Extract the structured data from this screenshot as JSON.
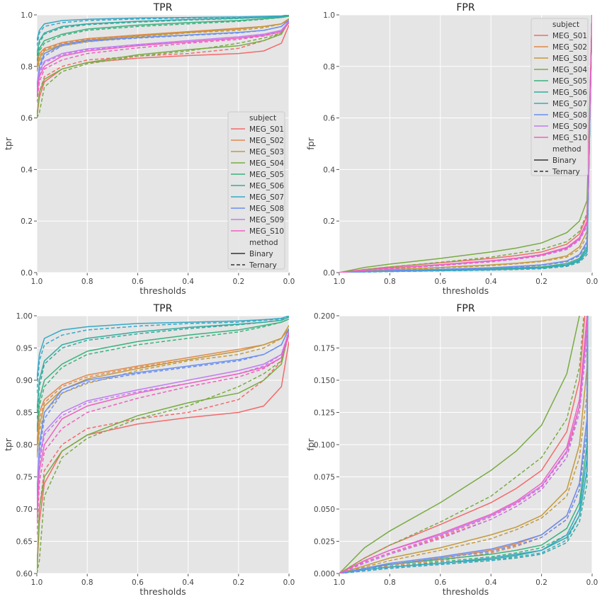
{
  "figure": {
    "background": "#ffffff",
    "panel_background": "#e5e5e5",
    "grid_color": "#ffffff"
  },
  "legend_items": {
    "subject_title": "subject",
    "method_title": "method",
    "subjects": [
      "MEG_S01",
      "MEG_S02",
      "MEG_S03",
      "MEG_S04",
      "MEG_S05",
      "MEG_S06",
      "MEG_S07",
      "MEG_S08",
      "MEG_S09",
      "MEG_S10"
    ],
    "colors": [
      "#f46a6c",
      "#e0884a",
      "#c39a3f",
      "#79ab43",
      "#3ab27f",
      "#33ab9f",
      "#36a8c6",
      "#6b8ff0",
      "#c07cf2",
      "#f060c0"
    ],
    "methods": [
      "Binary",
      "Ternary"
    ]
  },
  "chart_data": [
    {
      "type": "line",
      "title": "TPR",
      "xlabel": "thresholds",
      "ylabel": "tpr",
      "xlim": [
        1.0,
        0.0
      ],
      "ylim": [
        0.0,
        1.0
      ],
      "xticks": [
        "1.0",
        "0.8",
        "0.6",
        "0.4",
        "0.2",
        "0.0"
      ],
      "yticks": [
        "0.0",
        "0.2",
        "0.4",
        "0.6",
        "0.8",
        "1.0"
      ],
      "grid": true,
      "legend": "lower-right",
      "x": [
        1.0,
        0.99,
        0.97,
        0.9,
        0.8,
        0.6,
        0.4,
        0.2,
        0.1,
        0.03,
        0.0
      ],
      "series": [
        {
          "name": "MEG_S01",
          "method": "Binary",
          "values": [
            0.6,
            0.68,
            0.74,
            0.79,
            0.815,
            0.832,
            0.842,
            0.85,
            0.86,
            0.89,
            0.96
          ]
        },
        {
          "name": "MEG_S01",
          "method": "Ternary",
          "values": [
            0.6,
            0.7,
            0.76,
            0.8,
            0.825,
            0.84,
            0.85,
            0.87,
            0.9,
            0.93,
            0.97
          ]
        },
        {
          "name": "MEG_S02",
          "method": "Binary",
          "values": [
            0.8,
            0.85,
            0.87,
            0.893,
            0.908,
            0.922,
            0.935,
            0.948,
            0.955,
            0.965,
            0.98
          ]
        },
        {
          "name": "MEG_S02",
          "method": "Ternary",
          "values": [
            0.8,
            0.84,
            0.865,
            0.89,
            0.905,
            0.92,
            0.932,
            0.945,
            0.955,
            0.965,
            0.985
          ]
        },
        {
          "name": "MEG_S03",
          "method": "Binary",
          "values": [
            0.78,
            0.83,
            0.86,
            0.885,
            0.902,
            0.918,
            0.932,
            0.945,
            0.955,
            0.965,
            0.985
          ]
        },
        {
          "name": "MEG_S03",
          "method": "Ternary",
          "values": [
            0.78,
            0.82,
            0.85,
            0.88,
            0.895,
            0.915,
            0.93,
            0.94,
            0.95,
            0.965,
            0.985
          ]
        },
        {
          "name": "MEG_S04",
          "method": "Binary",
          "values": [
            0.6,
            0.7,
            0.75,
            0.79,
            0.815,
            0.845,
            0.865,
            0.88,
            0.9,
            0.925,
            0.975
          ]
        },
        {
          "name": "MEG_S04",
          "method": "Ternary",
          "values": [
            0.6,
            0.62,
            0.72,
            0.78,
            0.81,
            0.84,
            0.86,
            0.89,
            0.91,
            0.93,
            0.98
          ]
        },
        {
          "name": "MEG_S05",
          "method": "Binary",
          "values": [
            0.82,
            0.87,
            0.9,
            0.925,
            0.945,
            0.96,
            0.97,
            0.978,
            0.985,
            0.99,
            0.995
          ]
        },
        {
          "name": "MEG_S05",
          "method": "Ternary",
          "values": [
            0.82,
            0.86,
            0.89,
            0.92,
            0.94,
            0.955,
            0.965,
            0.975,
            0.983,
            0.99,
            0.995
          ]
        },
        {
          "name": "MEG_S06",
          "method": "Binary",
          "values": [
            0.85,
            0.9,
            0.93,
            0.955,
            0.965,
            0.975,
            0.982,
            0.987,
            0.99,
            0.993,
            0.998
          ]
        },
        {
          "name": "MEG_S06",
          "method": "Ternary",
          "values": [
            0.84,
            0.89,
            0.925,
            0.95,
            0.962,
            0.972,
            0.98,
            0.986,
            0.99,
            0.993,
            0.998
          ]
        },
        {
          "name": "MEG_S07",
          "method": "Binary",
          "values": [
            0.9,
            0.94,
            0.965,
            0.978,
            0.983,
            0.988,
            0.99,
            0.992,
            0.994,
            0.996,
            1.0
          ]
        },
        {
          "name": "MEG_S07",
          "method": "Ternary",
          "values": [
            0.88,
            0.93,
            0.955,
            0.97,
            0.978,
            0.984,
            0.988,
            0.99,
            0.993,
            0.995,
            1.0
          ]
        },
        {
          "name": "MEG_S08",
          "method": "Binary",
          "values": [
            0.72,
            0.8,
            0.85,
            0.885,
            0.9,
            0.912,
            0.922,
            0.932,
            0.94,
            0.955,
            0.98
          ]
        },
        {
          "name": "MEG_S08",
          "method": "Ternary",
          "values": [
            0.72,
            0.79,
            0.84,
            0.88,
            0.897,
            0.91,
            0.92,
            0.93,
            0.94,
            0.955,
            0.98
          ]
        },
        {
          "name": "MEG_S09",
          "method": "Binary",
          "values": [
            0.7,
            0.78,
            0.82,
            0.85,
            0.868,
            0.885,
            0.9,
            0.915,
            0.925,
            0.94,
            0.975
          ]
        },
        {
          "name": "MEG_S09",
          "method": "Ternary",
          "values": [
            0.7,
            0.77,
            0.815,
            0.845,
            0.865,
            0.882,
            0.895,
            0.91,
            0.922,
            0.94,
            0.975
          ]
        },
        {
          "name": "MEG_S10",
          "method": "Binary",
          "values": [
            0.68,
            0.76,
            0.8,
            0.84,
            0.86,
            0.88,
            0.895,
            0.91,
            0.92,
            0.935,
            0.97
          ]
        },
        {
          "name": "MEG_S10",
          "method": "Ternary",
          "values": [
            0.66,
            0.74,
            0.79,
            0.825,
            0.85,
            0.872,
            0.89,
            0.905,
            0.918,
            0.935,
            0.975
          ]
        }
      ]
    },
    {
      "type": "line",
      "title": "FPR",
      "xlabel": "thresholds",
      "ylabel": "fpr",
      "xlim": [
        1.0,
        0.0
      ],
      "ylim": [
        0.0,
        1.0
      ],
      "xticks": [
        "1.0",
        "0.8",
        "0.6",
        "0.4",
        "0.2",
        "0.0"
      ],
      "yticks": [
        "0.0",
        "0.2",
        "0.4",
        "0.6",
        "0.8",
        "1.0"
      ],
      "grid": true,
      "legend": "upper-right",
      "x": [
        1.0,
        0.9,
        0.8,
        0.6,
        0.4,
        0.3,
        0.2,
        0.1,
        0.05,
        0.02,
        0.0
      ],
      "series": [
        {
          "name": "MEG_S01",
          "method": "Binary",
          "values": [
            0.0,
            0.012,
            0.022,
            0.038,
            0.055,
            0.066,
            0.08,
            0.11,
            0.15,
            0.22,
            1.0
          ]
        },
        {
          "name": "MEG_S01",
          "method": "Ternary",
          "values": [
            0.0,
            0.008,
            0.015,
            0.028,
            0.042,
            0.052,
            0.065,
            0.09,
            0.13,
            0.2,
            1.0
          ]
        },
        {
          "name": "MEG_S02",
          "method": "Binary",
          "values": [
            0.0,
            0.004,
            0.007,
            0.012,
            0.018,
            0.023,
            0.03,
            0.045,
            0.07,
            0.12,
            1.0
          ]
        },
        {
          "name": "MEG_S02",
          "method": "Ternary",
          "values": [
            0.0,
            0.003,
            0.006,
            0.01,
            0.016,
            0.021,
            0.028,
            0.042,
            0.065,
            0.11,
            1.0
          ]
        },
        {
          "name": "MEG_S03",
          "method": "Binary",
          "values": [
            0.0,
            0.006,
            0.012,
            0.02,
            0.03,
            0.036,
            0.045,
            0.065,
            0.1,
            0.16,
            1.0
          ]
        },
        {
          "name": "MEG_S03",
          "method": "Ternary",
          "values": [
            0.0,
            0.005,
            0.01,
            0.018,
            0.027,
            0.034,
            0.043,
            0.06,
            0.09,
            0.14,
            1.0
          ]
        },
        {
          "name": "MEG_S04",
          "method": "Binary",
          "values": [
            0.0,
            0.02,
            0.033,
            0.055,
            0.08,
            0.095,
            0.115,
            0.155,
            0.2,
            0.28,
            1.0
          ]
        },
        {
          "name": "MEG_S04",
          "method": "Ternary",
          "values": [
            0.0,
            0.012,
            0.022,
            0.04,
            0.06,
            0.075,
            0.09,
            0.12,
            0.16,
            0.23,
            1.0
          ]
        },
        {
          "name": "MEG_S05",
          "method": "Binary",
          "values": [
            0.0,
            0.004,
            0.007,
            0.011,
            0.015,
            0.018,
            0.022,
            0.035,
            0.055,
            0.1,
            1.0
          ]
        },
        {
          "name": "MEG_S05",
          "method": "Ternary",
          "values": [
            0.0,
            0.003,
            0.005,
            0.009,
            0.013,
            0.016,
            0.02,
            0.03,
            0.05,
            0.09,
            1.0
          ]
        },
        {
          "name": "MEG_S06",
          "method": "Binary",
          "values": [
            0.0,
            0.003,
            0.005,
            0.008,
            0.011,
            0.014,
            0.018,
            0.028,
            0.045,
            0.08,
            1.0
          ]
        },
        {
          "name": "MEG_S06",
          "method": "Ternary",
          "values": [
            0.0,
            0.002,
            0.004,
            0.007,
            0.01,
            0.012,
            0.015,
            0.024,
            0.04,
            0.07,
            1.0
          ]
        },
        {
          "name": "MEG_S07",
          "method": "Binary",
          "values": [
            0.0,
            0.003,
            0.005,
            0.008,
            0.012,
            0.015,
            0.018,
            0.03,
            0.05,
            0.09,
            1.0
          ]
        },
        {
          "name": "MEG_S07",
          "method": "Ternary",
          "values": [
            0.0,
            0.002,
            0.004,
            0.007,
            0.01,
            0.013,
            0.016,
            0.026,
            0.045,
            0.08,
            1.0
          ]
        },
        {
          "name": "MEG_S08",
          "method": "Binary",
          "values": [
            0.0,
            0.004,
            0.008,
            0.013,
            0.019,
            0.024,
            0.03,
            0.045,
            0.07,
            0.12,
            1.0
          ]
        },
        {
          "name": "MEG_S08",
          "method": "Ternary",
          "values": [
            0.0,
            0.003,
            0.007,
            0.012,
            0.017,
            0.022,
            0.028,
            0.042,
            0.065,
            0.11,
            1.0
          ]
        },
        {
          "name": "MEG_S09",
          "method": "Binary",
          "values": [
            0.0,
            0.01,
            0.018,
            0.03,
            0.045,
            0.055,
            0.068,
            0.095,
            0.13,
            0.19,
            1.0
          ]
        },
        {
          "name": "MEG_S09",
          "method": "Ternary",
          "values": [
            0.0,
            0.008,
            0.015,
            0.027,
            0.042,
            0.052,
            0.065,
            0.09,
            0.125,
            0.18,
            1.0
          ]
        },
        {
          "name": "MEG_S10",
          "method": "Binary",
          "values": [
            0.0,
            0.01,
            0.018,
            0.031,
            0.046,
            0.056,
            0.07,
            0.098,
            0.135,
            0.2,
            1.0
          ]
        },
        {
          "name": "MEG_S10",
          "method": "Ternary",
          "values": [
            0.0,
            0.009,
            0.016,
            0.029,
            0.044,
            0.054,
            0.067,
            0.094,
            0.13,
            0.19,
            1.0
          ]
        }
      ]
    },
    {
      "type": "line",
      "title": "TPR",
      "xlabel": "thresholds",
      "ylabel": "tpr",
      "xlim": [
        1.0,
        0.0
      ],
      "ylim": [
        0.6,
        1.0
      ],
      "xticks": [
        "1.0",
        "0.8",
        "0.6",
        "0.4",
        "0.2",
        "0.0"
      ],
      "yticks": [
        "0.60",
        "0.65",
        "0.70",
        "0.75",
        "0.80",
        "0.85",
        "0.90",
        "0.95",
        "1.00"
      ],
      "grid": true,
      "legend": "none",
      "x": [
        1.0,
        0.99,
        0.97,
        0.9,
        0.8,
        0.6,
        0.4,
        0.2,
        0.1,
        0.03,
        0.0
      ],
      "series_ref": 0
    },
    {
      "type": "line",
      "title": "FPR",
      "xlabel": "thresholds",
      "ylabel": "fpr",
      "xlim": [
        1.0,
        0.0
      ],
      "ylim": [
        0.0,
        0.2
      ],
      "xticks": [
        "1.0",
        "0.8",
        "0.6",
        "0.4",
        "0.2",
        "0.0"
      ],
      "yticks": [
        "0.000",
        "0.025",
        "0.050",
        "0.075",
        "0.100",
        "0.125",
        "0.150",
        "0.175",
        "0.200"
      ],
      "grid": true,
      "legend": "none",
      "x": [
        1.0,
        0.9,
        0.8,
        0.6,
        0.4,
        0.3,
        0.2,
        0.1,
        0.05,
        0.02,
        0.0
      ],
      "series_ref": 1
    }
  ]
}
